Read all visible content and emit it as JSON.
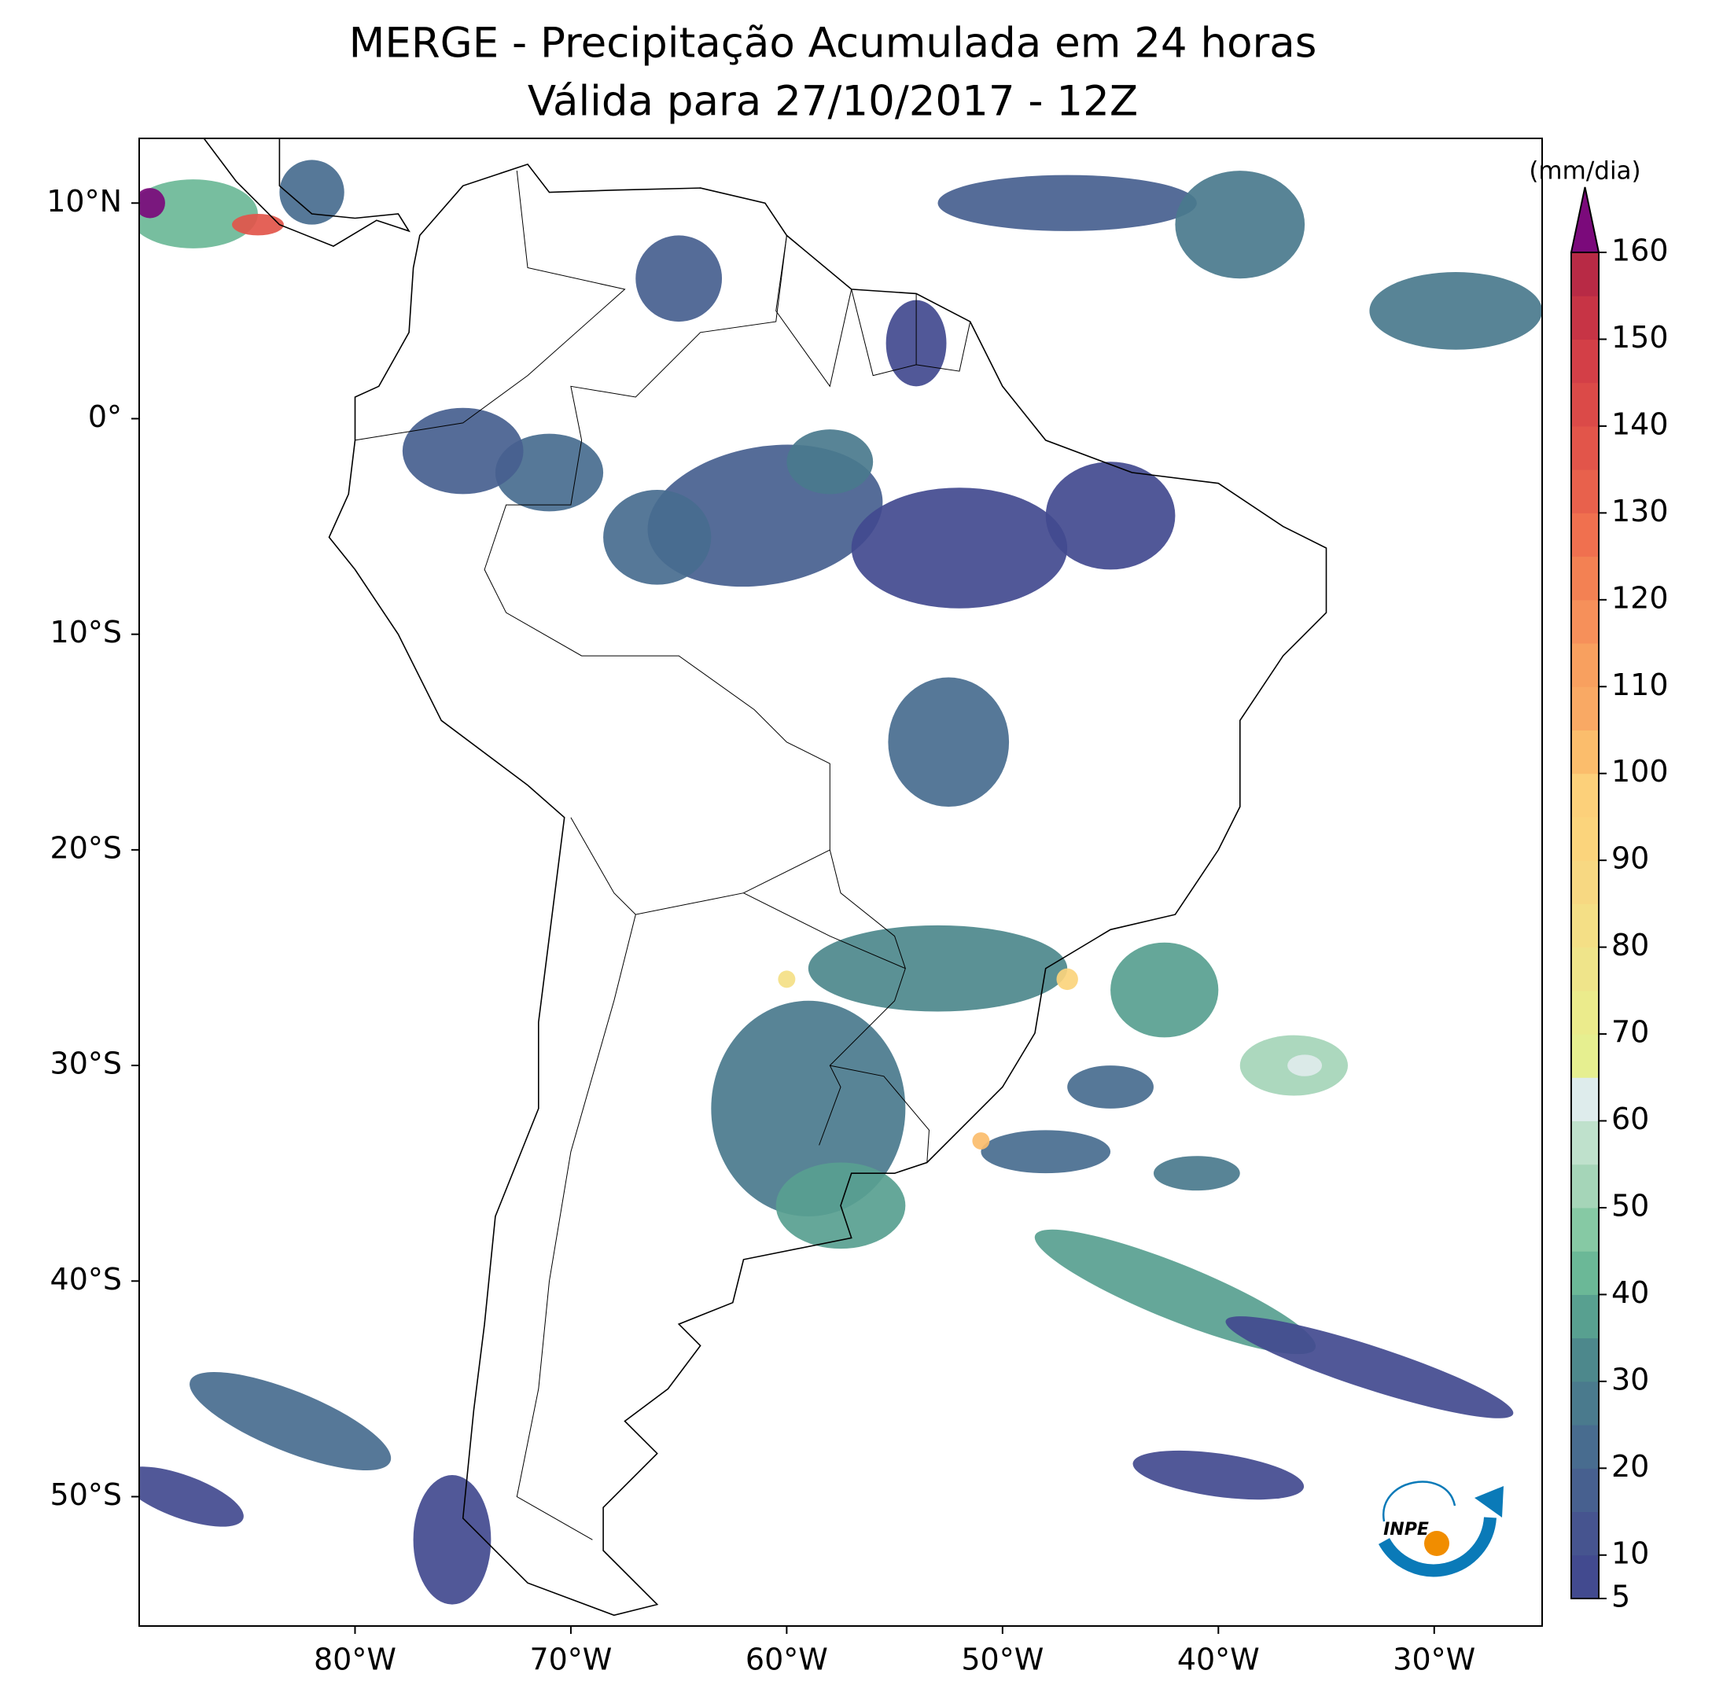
{
  "map": {
    "title": [
      "MERGE - Precipitação Acumulada em 24 horas",
      "Válida para 27/10/2017 - 12Z"
    ],
    "xlim": [
      -90,
      -25
    ],
    "ylim": [
      -56,
      13
    ],
    "xticks": [
      {
        "value": -80,
        "label": "80°W"
      },
      {
        "value": -70,
        "label": "70°W"
      },
      {
        "value": -60,
        "label": "60°W"
      },
      {
        "value": -50,
        "label": "50°W"
      },
      {
        "value": -40,
        "label": "40°W"
      },
      {
        "value": -30,
        "label": "30°W"
      }
    ],
    "yticks": [
      {
        "value": 10,
        "label": "10°N"
      },
      {
        "value": 0,
        "label": "0°"
      },
      {
        "value": -10,
        "label": "10°S"
      },
      {
        "value": -20,
        "label": "20°S"
      },
      {
        "value": -30,
        "label": "30°S"
      },
      {
        "value": -40,
        "label": "40°S"
      },
      {
        "value": -50,
        "label": "50°S"
      }
    ],
    "colorbar": {
      "label": "(mm/dia)",
      "levels": [
        5,
        10,
        15,
        20,
        25,
        30,
        35,
        40,
        45,
        50,
        55,
        60,
        65,
        70,
        75,
        80,
        85,
        90,
        95,
        100,
        105,
        110,
        115,
        120,
        125,
        130,
        135,
        140,
        145,
        150,
        155,
        160
      ],
      "colors": [
        "#424a8f",
        "#46548f",
        "#47608f",
        "#486c8f",
        "#4a7a8d",
        "#4d888c",
        "#58a090",
        "#6bb897",
        "#86c9a4",
        "#a5d5b8",
        "#bfe1cc",
        "#deecec",
        "#e6ef90",
        "#ebeb8c",
        "#efe48a",
        "#f4df86",
        "#f7d882",
        "#fbd47c",
        "#fcd07a",
        "#fbbd6c",
        "#f9a964",
        "#f8a05f",
        "#f6905a",
        "#f38153",
        "#f0704f",
        "#e8614c",
        "#e2554a",
        "#db4a48",
        "#d33f47",
        "#c73445",
        "#b82a45"
      ],
      "extend_color": "#7b0a7b",
      "ticks": [
        5,
        10,
        20,
        30,
        40,
        50,
        60,
        70,
        80,
        90,
        100,
        110,
        120,
        130,
        140,
        150,
        160
      ]
    },
    "logo": "INPE"
  }
}
